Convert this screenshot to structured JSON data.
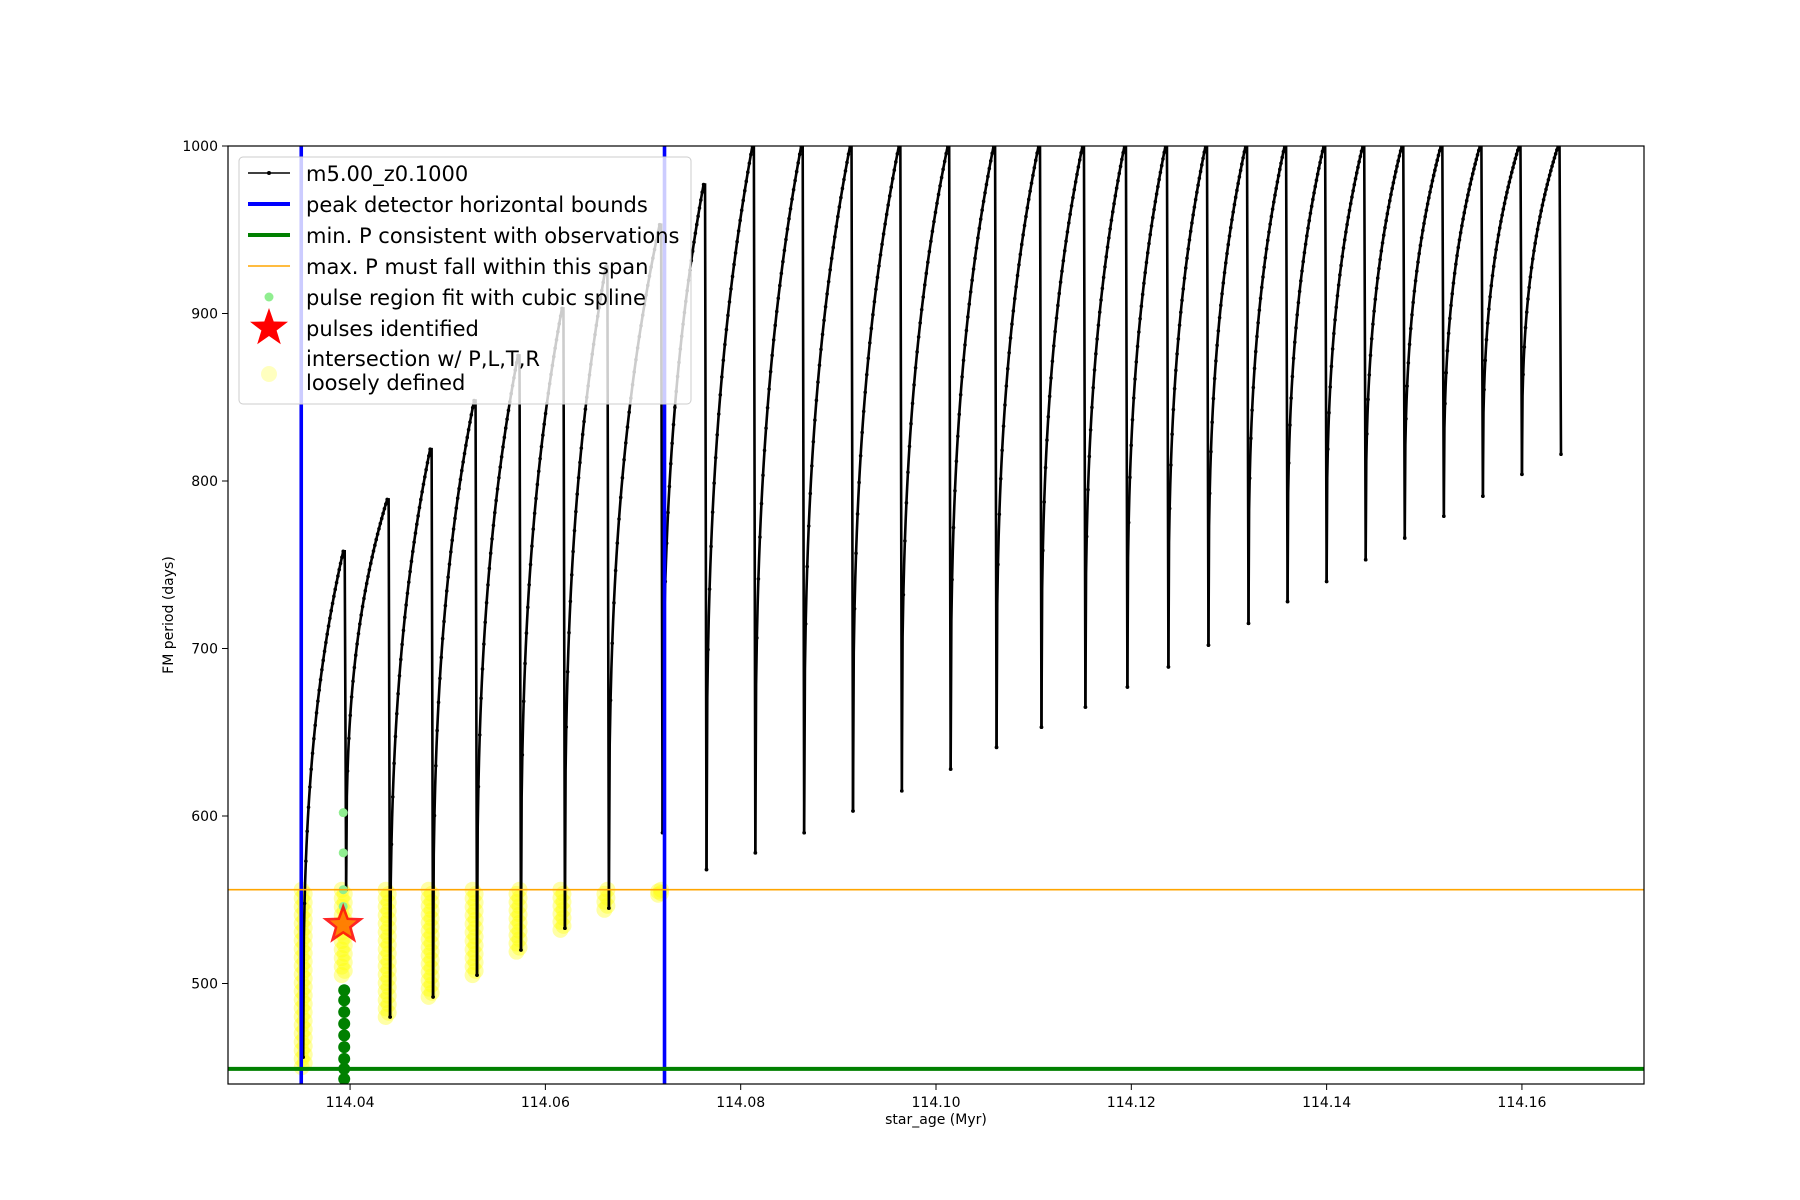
{
  "chart_data": {
    "type": "line",
    "xlabel": "star_age (Myr)",
    "ylabel": "FM period (days)",
    "xlim": [
      114.0275,
      114.1725
    ],
    "ylim": [
      440,
      1000
    ],
    "x_ticks": [
      "114.04",
      "114.06",
      "114.08",
      "114.10",
      "114.12",
      "114.14",
      "114.16"
    ],
    "x_tick_values": [
      114.04,
      114.06,
      114.08,
      114.1,
      114.12,
      114.14,
      114.16
    ],
    "y_ticks": [
      "500",
      "600",
      "700",
      "800",
      "900",
      "1000"
    ],
    "y_tick_values": [
      500,
      600,
      700,
      800,
      900,
      1000
    ],
    "legend_position": "upper left",
    "legend": {
      "model": "m5.00_z0.1000",
      "bounds": "peak detector horizontal bounds",
      "min_p": "min. P consistent with observations",
      "max_p": "max. P must fall within this span",
      "spline": "pulse region fit with cubic spline",
      "pulses": "pulses identified",
      "intersection_line1": "intersection w/ P,L,T,R",
      "intersection_line2": "loosely defined"
    },
    "colors": {
      "model": "#000000",
      "bounds": "#0000ff",
      "min_p": "#008000",
      "max_p": "#ffa500",
      "spline_light": "#90ee90",
      "spline_dark": "#008000",
      "pulse_star": "#ff0000",
      "intersection": "#ffff00"
    },
    "vertical_bounds_x": [
      114.035,
      114.0722
    ],
    "min_p_value": 449,
    "max_p_value": 556,
    "pulse_identified": {
      "x": 114.0393,
      "y": 535
    },
    "pulse_peak_x": [
      114.0393,
      114.0438,
      114.0482,
      114.0527,
      114.0572,
      114.0617,
      114.0662,
      114.0717,
      114.0762,
      114.0812,
      114.0862,
      114.0912,
      114.0962,
      114.1012,
      114.1059,
      114.1105,
      114.115,
      114.1193,
      114.1235,
      114.1276,
      114.1317,
      114.1357,
      114.1397,
      114.1437,
      114.1477,
      114.1517,
      114.1557,
      114.1597,
      114.1637
    ],
    "pulse_peak_y": [
      758,
      789,
      819,
      848,
      875,
      903,
      928,
      953,
      977,
      1000,
      1000,
      1000,
      1000,
      1000,
      1000,
      1000,
      1000,
      1000,
      1000,
      1000,
      1000,
      1000,
      1000,
      1000,
      1000,
      1000,
      1000,
      1000,
      1000
    ],
    "pulse_min_y": [
      456,
      556,
      480,
      492,
      505,
      520,
      533,
      545,
      590,
      568,
      578,
      590,
      603,
      615,
      628,
      641,
      653,
      665,
      677,
      689,
      702,
      715,
      728,
      740,
      753,
      766,
      779,
      791,
      804,
      816
    ],
    "pre_pulse_dip": {
      "x": 114.0352,
      "y": 456
    },
    "intersection_groups": [
      {
        "x": 114.0352,
        "y_low": 450,
        "y_high": 556
      },
      {
        "x": 114.0393,
        "y_low": 505,
        "y_high": 556
      },
      {
        "x": 114.0438,
        "y_low": 480,
        "y_high": 556
      },
      {
        "x": 114.0482,
        "y_low": 492,
        "y_high": 556
      },
      {
        "x": 114.0527,
        "y_low": 505,
        "y_high": 556
      },
      {
        "x": 114.0572,
        "y_low": 519,
        "y_high": 556
      },
      {
        "x": 114.0617,
        "y_low": 532,
        "y_high": 556
      },
      {
        "x": 114.0662,
        "y_low": 544,
        "y_high": 556
      },
      {
        "x": 114.0717,
        "y_low": 553,
        "y_high": 556
      }
    ],
    "spline_points_light": [
      {
        "x": 114.0393,
        "y": 602
      },
      {
        "x": 114.0393,
        "y": 578
      },
      {
        "x": 114.0393,
        "y": 556
      },
      {
        "x": 114.0393,
        "y": 546
      }
    ],
    "spline_points_dark": [
      {
        "x": 114.0394,
        "y": 496
      },
      {
        "x": 114.0394,
        "y": 490
      },
      {
        "x": 114.0394,
        "y": 483
      },
      {
        "x": 114.0394,
        "y": 476
      },
      {
        "x": 114.0394,
        "y": 469
      },
      {
        "x": 114.0394,
        "y": 462
      },
      {
        "x": 114.0394,
        "y": 455
      },
      {
        "x": 114.0394,
        "y": 449
      },
      {
        "x": 114.0394,
        "y": 443
      }
    ]
  }
}
